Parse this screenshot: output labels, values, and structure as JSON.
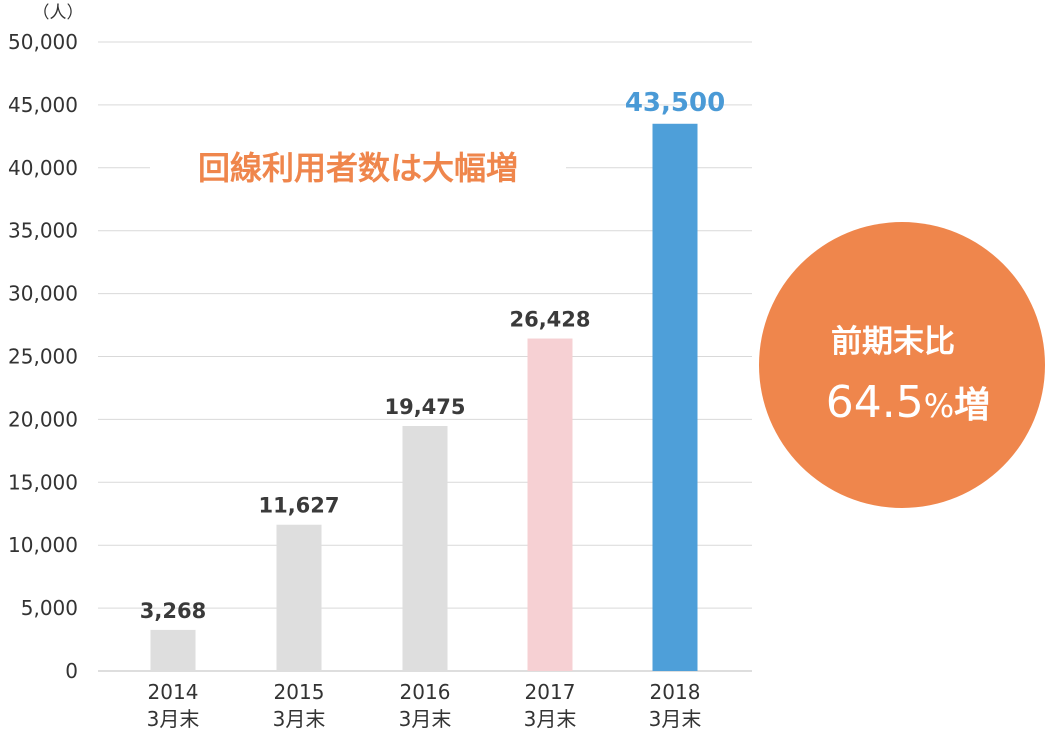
{
  "chart_data": {
    "type": "bar",
    "unit_label": "（人）",
    "categories": [
      {
        "year": "2014",
        "sub": "3月末"
      },
      {
        "year": "2015",
        "sub": "3月末"
      },
      {
        "year": "2016",
        "sub": "3月末"
      },
      {
        "year": "2017",
        "sub": "3月末"
      },
      {
        "year": "2018",
        "sub": "3月末"
      }
    ],
    "values": [
      3268,
      11627,
      19475,
      26428,
      43500
    ],
    "value_labels": [
      "3,268",
      "11,627",
      "19,475",
      "26,428",
      "43,500"
    ],
    "bar_colors": [
      "#dedede",
      "#dedede",
      "#dedede",
      "#f6d0d3",
      "#4e9fd9"
    ],
    "label_colors": [
      "#3a3a3a",
      "#3a3a3a",
      "#3a3a3a",
      "#3a3a3a",
      "#4a9ad6"
    ],
    "ylim": [
      0,
      50000
    ],
    "yticks": [
      0,
      5000,
      10000,
      15000,
      20000,
      25000,
      30000,
      35000,
      40000,
      45000,
      50000
    ],
    "ytick_labels": [
      "0",
      "5,000",
      "10,000",
      "15,000",
      "20,000",
      "25,000",
      "30,000",
      "35,000",
      "40,000",
      "45,000",
      "50,000"
    ],
    "grid": true,
    "headline": "回線利用者数は大幅増",
    "headline_color": "#ef864c",
    "badge": {
      "line1": "前期末比",
      "value": "64.5",
      "percent": "%",
      "suffix": "増",
      "color": "#ef864c"
    }
  }
}
